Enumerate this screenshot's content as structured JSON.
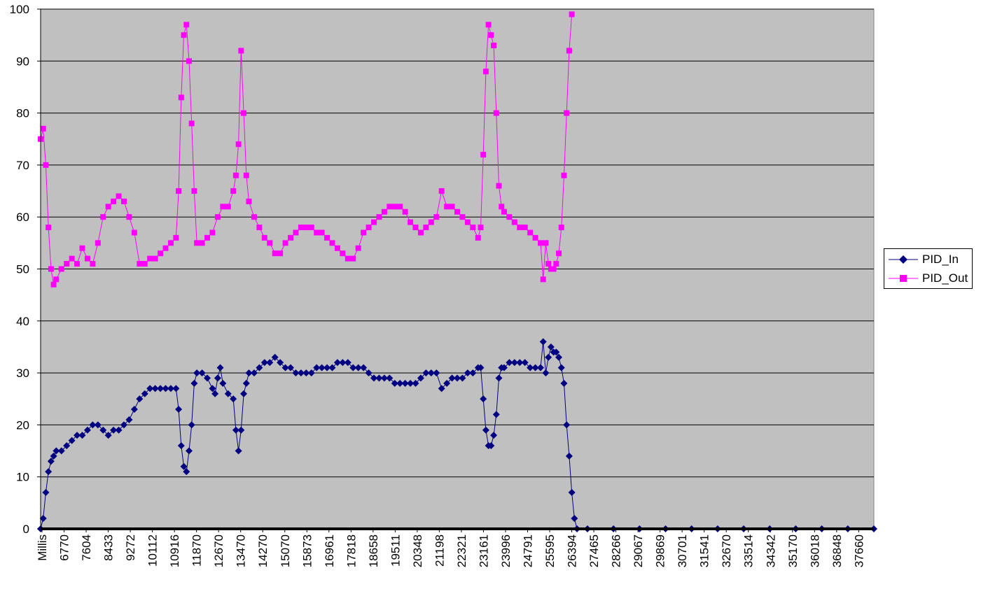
{
  "chart_data": {
    "type": "line",
    "title": "",
    "xlabel": "",
    "ylabel": "",
    "ylim": [
      0,
      100
    ],
    "yticks": [
      0,
      10,
      20,
      30,
      40,
      50,
      60,
      70,
      80,
      90,
      100
    ],
    "xtick_labels": [
      "Millis",
      "6770",
      "7604",
      "8433",
      "9272",
      "10112",
      "10916",
      "11870",
      "12670",
      "13470",
      "14270",
      "15070",
      "15873",
      "16961",
      "17818",
      "18658",
      "19511",
      "20348",
      "21198",
      "22321",
      "23161",
      "23996",
      "24791",
      "25595",
      "26394",
      "27465",
      "28266",
      "29067",
      "29869",
      "30701",
      "31541",
      "32670",
      "33514",
      "34342",
      "35170",
      "36018",
      "36848",
      "37660"
    ],
    "grid": true,
    "legend_position": "right",
    "plot_background": "#C0C0C0",
    "series": [
      {
        "name": "PID_In",
        "color": "#000080",
        "marker": "diamond",
        "points": [
          [
            0,
            0
          ],
          [
            0.5,
            2
          ],
          [
            1,
            7
          ],
          [
            1.5,
            11
          ],
          [
            2,
            13
          ],
          [
            2.5,
            14
          ],
          [
            3,
            15
          ],
          [
            4,
            15
          ],
          [
            5,
            16
          ],
          [
            6,
            17
          ],
          [
            7,
            18
          ],
          [
            8,
            18
          ],
          [
            9,
            19
          ],
          [
            10,
            20
          ],
          [
            11,
            20
          ],
          [
            12,
            19
          ],
          [
            13,
            18
          ],
          [
            14,
            19
          ],
          [
            15,
            19
          ],
          [
            16,
            20
          ],
          [
            17,
            21
          ],
          [
            18,
            23
          ],
          [
            19,
            25
          ],
          [
            20,
            26
          ],
          [
            21,
            27
          ],
          [
            22,
            27
          ],
          [
            23,
            27
          ],
          [
            24,
            27
          ],
          [
            25,
            27
          ],
          [
            26,
            27
          ],
          [
            26.5,
            23
          ],
          [
            27,
            16
          ],
          [
            27.5,
            12
          ],
          [
            28,
            11
          ],
          [
            28.5,
            15
          ],
          [
            29,
            20
          ],
          [
            29.5,
            28
          ],
          [
            30,
            30
          ],
          [
            31,
            30
          ],
          [
            32,
            29
          ],
          [
            33,
            27
          ],
          [
            33.5,
            26
          ],
          [
            34,
            29
          ],
          [
            34.5,
            31
          ],
          [
            35,
            28
          ],
          [
            36,
            26
          ],
          [
            37,
            25
          ],
          [
            37.5,
            19
          ],
          [
            38,
            15
          ],
          [
            38.5,
            19
          ],
          [
            39,
            26
          ],
          [
            39.5,
            28
          ],
          [
            40,
            30
          ],
          [
            41,
            30
          ],
          [
            42,
            31
          ],
          [
            43,
            32
          ],
          [
            44,
            32
          ],
          [
            45,
            33
          ],
          [
            46,
            32
          ],
          [
            47,
            31
          ],
          [
            48,
            31
          ],
          [
            49,
            30
          ],
          [
            50,
            30
          ],
          [
            51,
            30
          ],
          [
            52,
            30
          ],
          [
            53,
            31
          ],
          [
            54,
            31
          ],
          [
            55,
            31
          ],
          [
            56,
            31
          ],
          [
            57,
            32
          ],
          [
            58,
            32
          ],
          [
            59,
            32
          ],
          [
            60,
            31
          ],
          [
            61,
            31
          ],
          [
            62,
            31
          ],
          [
            63,
            30
          ],
          [
            64,
            29
          ],
          [
            65,
            29
          ],
          [
            66,
            29
          ],
          [
            67,
            29
          ],
          [
            68,
            28
          ],
          [
            69,
            28
          ],
          [
            70,
            28
          ],
          [
            71,
            28
          ],
          [
            72,
            28
          ],
          [
            73,
            29
          ],
          [
            74,
            30
          ],
          [
            75,
            30
          ],
          [
            76,
            30
          ],
          [
            77,
            27
          ],
          [
            78,
            28
          ],
          [
            79,
            29
          ],
          [
            80,
            29
          ],
          [
            81,
            29
          ],
          [
            82,
            30
          ],
          [
            83,
            30
          ],
          [
            84,
            31
          ],
          [
            84.5,
            31
          ],
          [
            85,
            25
          ],
          [
            85.5,
            19
          ],
          [
            86,
            16
          ],
          [
            86.5,
            16
          ],
          [
            87,
            18
          ],
          [
            87.5,
            22
          ],
          [
            88,
            29
          ],
          [
            88.5,
            31
          ],
          [
            89,
            31
          ],
          [
            90,
            32
          ],
          [
            91,
            32
          ],
          [
            92,
            32
          ],
          [
            93,
            32
          ],
          [
            94,
            31
          ],
          [
            95,
            31
          ],
          [
            96,
            31
          ],
          [
            96.5,
            36
          ],
          [
            97,
            30
          ],
          [
            97.5,
            33
          ],
          [
            98,
            35
          ],
          [
            98.5,
            34
          ],
          [
            99,
            34
          ],
          [
            99.5,
            33
          ],
          [
            100,
            31
          ],
          [
            100.5,
            28
          ],
          [
            101,
            20
          ],
          [
            101.5,
            14
          ],
          [
            102,
            7
          ],
          [
            102.5,
            2
          ],
          [
            103,
            0
          ],
          [
            105,
            0
          ],
          [
            110,
            0
          ],
          [
            115,
            0
          ],
          [
            120,
            0
          ],
          [
            125,
            0
          ],
          [
            130,
            0
          ],
          [
            135,
            0
          ],
          [
            140,
            0
          ],
          [
            145,
            0
          ],
          [
            150,
            0
          ],
          [
            155,
            0
          ],
          [
            160,
            0
          ]
        ]
      },
      {
        "name": "PID_Out",
        "color": "#FF00FF",
        "marker": "square",
        "points": [
          [
            0,
            75
          ],
          [
            0.5,
            77
          ],
          [
            1,
            70
          ],
          [
            1.5,
            58
          ],
          [
            2,
            50
          ],
          [
            2.5,
            47
          ],
          [
            3,
            48
          ],
          [
            4,
            50
          ],
          [
            5,
            51
          ],
          [
            6,
            52
          ],
          [
            7,
            51
          ],
          [
            8,
            54
          ],
          [
            9,
            52
          ],
          [
            10,
            51
          ],
          [
            11,
            55
          ],
          [
            12,
            60
          ],
          [
            13,
            62
          ],
          [
            14,
            63
          ],
          [
            15,
            64
          ],
          [
            16,
            63
          ],
          [
            17,
            60
          ],
          [
            18,
            57
          ],
          [
            19,
            51
          ],
          [
            20,
            51
          ],
          [
            21,
            52
          ],
          [
            22,
            52
          ],
          [
            23,
            53
          ],
          [
            24,
            54
          ],
          [
            25,
            55
          ],
          [
            26,
            56
          ],
          [
            26.5,
            65
          ],
          [
            27,
            83
          ],
          [
            27.5,
            95
          ],
          [
            28,
            97
          ],
          [
            28.5,
            90
          ],
          [
            29,
            78
          ],
          [
            29.5,
            65
          ],
          [
            30,
            55
          ],
          [
            31,
            55
          ],
          [
            32,
            56
          ],
          [
            33,
            57
          ],
          [
            34,
            60
          ],
          [
            35,
            62
          ],
          [
            36,
            62
          ],
          [
            37,
            65
          ],
          [
            37.5,
            68
          ],
          [
            38,
            74
          ],
          [
            38.5,
            92
          ],
          [
            39,
            80
          ],
          [
            39.5,
            68
          ],
          [
            40,
            63
          ],
          [
            41,
            60
          ],
          [
            42,
            58
          ],
          [
            43,
            56
          ],
          [
            44,
            55
          ],
          [
            45,
            53
          ],
          [
            46,
            53
          ],
          [
            47,
            55
          ],
          [
            48,
            56
          ],
          [
            49,
            57
          ],
          [
            50,
            58
          ],
          [
            51,
            58
          ],
          [
            52,
            58
          ],
          [
            53,
            57
          ],
          [
            54,
            57
          ],
          [
            55,
            56
          ],
          [
            56,
            55
          ],
          [
            57,
            54
          ],
          [
            58,
            53
          ],
          [
            59,
            52
          ],
          [
            60,
            52
          ],
          [
            61,
            54
          ],
          [
            62,
            57
          ],
          [
            63,
            58
          ],
          [
            64,
            59
          ],
          [
            65,
            60
          ],
          [
            66,
            61
          ],
          [
            67,
            62
          ],
          [
            68,
            62
          ],
          [
            69,
            62
          ],
          [
            70,
            61
          ],
          [
            71,
            59
          ],
          [
            72,
            58
          ],
          [
            73,
            57
          ],
          [
            74,
            58
          ],
          [
            75,
            59
          ],
          [
            76,
            60
          ],
          [
            77,
            65
          ],
          [
            78,
            62
          ],
          [
            79,
            62
          ],
          [
            80,
            61
          ],
          [
            81,
            60
          ],
          [
            82,
            59
          ],
          [
            83,
            58
          ],
          [
            84,
            56
          ],
          [
            84.5,
            58
          ],
          [
            85,
            72
          ],
          [
            85.5,
            88
          ],
          [
            86,
            97
          ],
          [
            86.5,
            95
          ],
          [
            87,
            93
          ],
          [
            87.5,
            80
          ],
          [
            88,
            66
          ],
          [
            88.5,
            62
          ],
          [
            89,
            61
          ],
          [
            90,
            60
          ],
          [
            91,
            59
          ],
          [
            92,
            58
          ],
          [
            93,
            58
          ],
          [
            94,
            57
          ],
          [
            95,
            56
          ],
          [
            96,
            55
          ],
          [
            96.5,
            48
          ],
          [
            97,
            55
          ],
          [
            97.5,
            51
          ],
          [
            98,
            50
          ],
          [
            98.5,
            50
          ],
          [
            99,
            51
          ],
          [
            99.5,
            53
          ],
          [
            100,
            58
          ],
          [
            100.5,
            68
          ],
          [
            101,
            80
          ],
          [
            101.5,
            92
          ],
          [
            102,
            99
          ]
        ]
      }
    ]
  }
}
